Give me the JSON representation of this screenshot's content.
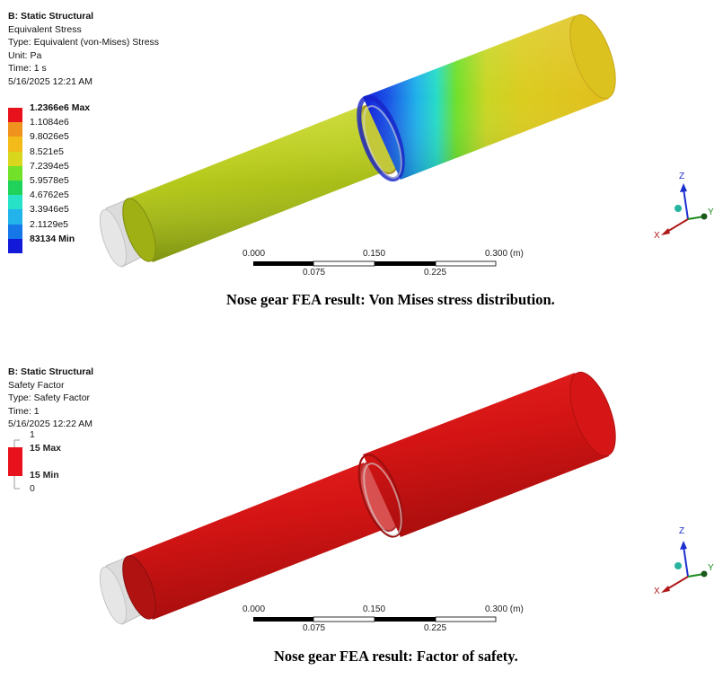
{
  "panel1": {
    "info": {
      "analysis": "B: Static Structural",
      "result": "Equivalent Stress",
      "type": "Type: Equivalent (von-Mises) Stress",
      "unit": "Unit: Pa",
      "time": "Time: 1 s",
      "date": "5/16/2025 12:21 AM"
    },
    "legend": [
      {
        "label": "1.2366e6 Max",
        "color": "#e8121c",
        "bold": true
      },
      {
        "label": "1.1084e6",
        "color": "#f0921e",
        "bold": false
      },
      {
        "label": "9.8026e5",
        "color": "#f3bb1a",
        "bold": false
      },
      {
        "label": "8.521e5",
        "color": "#d9d61e",
        "bold": false
      },
      {
        "label": "7.2394e5",
        "color": "#71e12a",
        "bold": false
      },
      {
        "label": "5.9578e5",
        "color": "#20d25a",
        "bold": false
      },
      {
        "label": "4.6762e5",
        "color": "#27e2c6",
        "bold": false
      },
      {
        "label": "3.3946e5",
        "color": "#21b3ea",
        "bold": false
      },
      {
        "label": "2.1129e5",
        "color": "#1577e8",
        "bold": false
      },
      {
        "label": "83134 Min",
        "color": "#1219d8",
        "bold": true
      }
    ],
    "scale": {
      "top": [
        "0.000",
        "0.150",
        "0.300 (m)"
      ],
      "bottom": [
        "0.075",
        "0.225"
      ]
    },
    "axes": {
      "z": "Z",
      "x": "X",
      "y": "Y"
    },
    "caption": "Nose gear FEA result:  Von Mises stress distribution."
  },
  "panel2": {
    "info": {
      "analysis": "B: Static Structural",
      "result": "Safety Factor",
      "type": "Type: Safety Factor",
      "time": "Time: 1",
      "date": "5/16/2025 12:22 AM"
    },
    "legend": {
      "top": "1",
      "max": "15 Max",
      "min": "15 Min",
      "bottom": "0",
      "color": "#e8121c"
    },
    "scale": {
      "top": [
        "0.000",
        "0.150",
        "0.300 (m)"
      ],
      "bottom": [
        "0.075",
        "0.225"
      ]
    },
    "axes": {
      "z": "Z",
      "x": "X",
      "y": "Y"
    },
    "caption": "Nose gear FEA result:  Factor of safety."
  },
  "colors": {
    "shaft_stress": "#b7cc1a",
    "shaft_safety": "#d41414",
    "axis_z": "#1a2fd0",
    "axis_x": "#b01818",
    "axis_y": "#1a8a1a"
  }
}
